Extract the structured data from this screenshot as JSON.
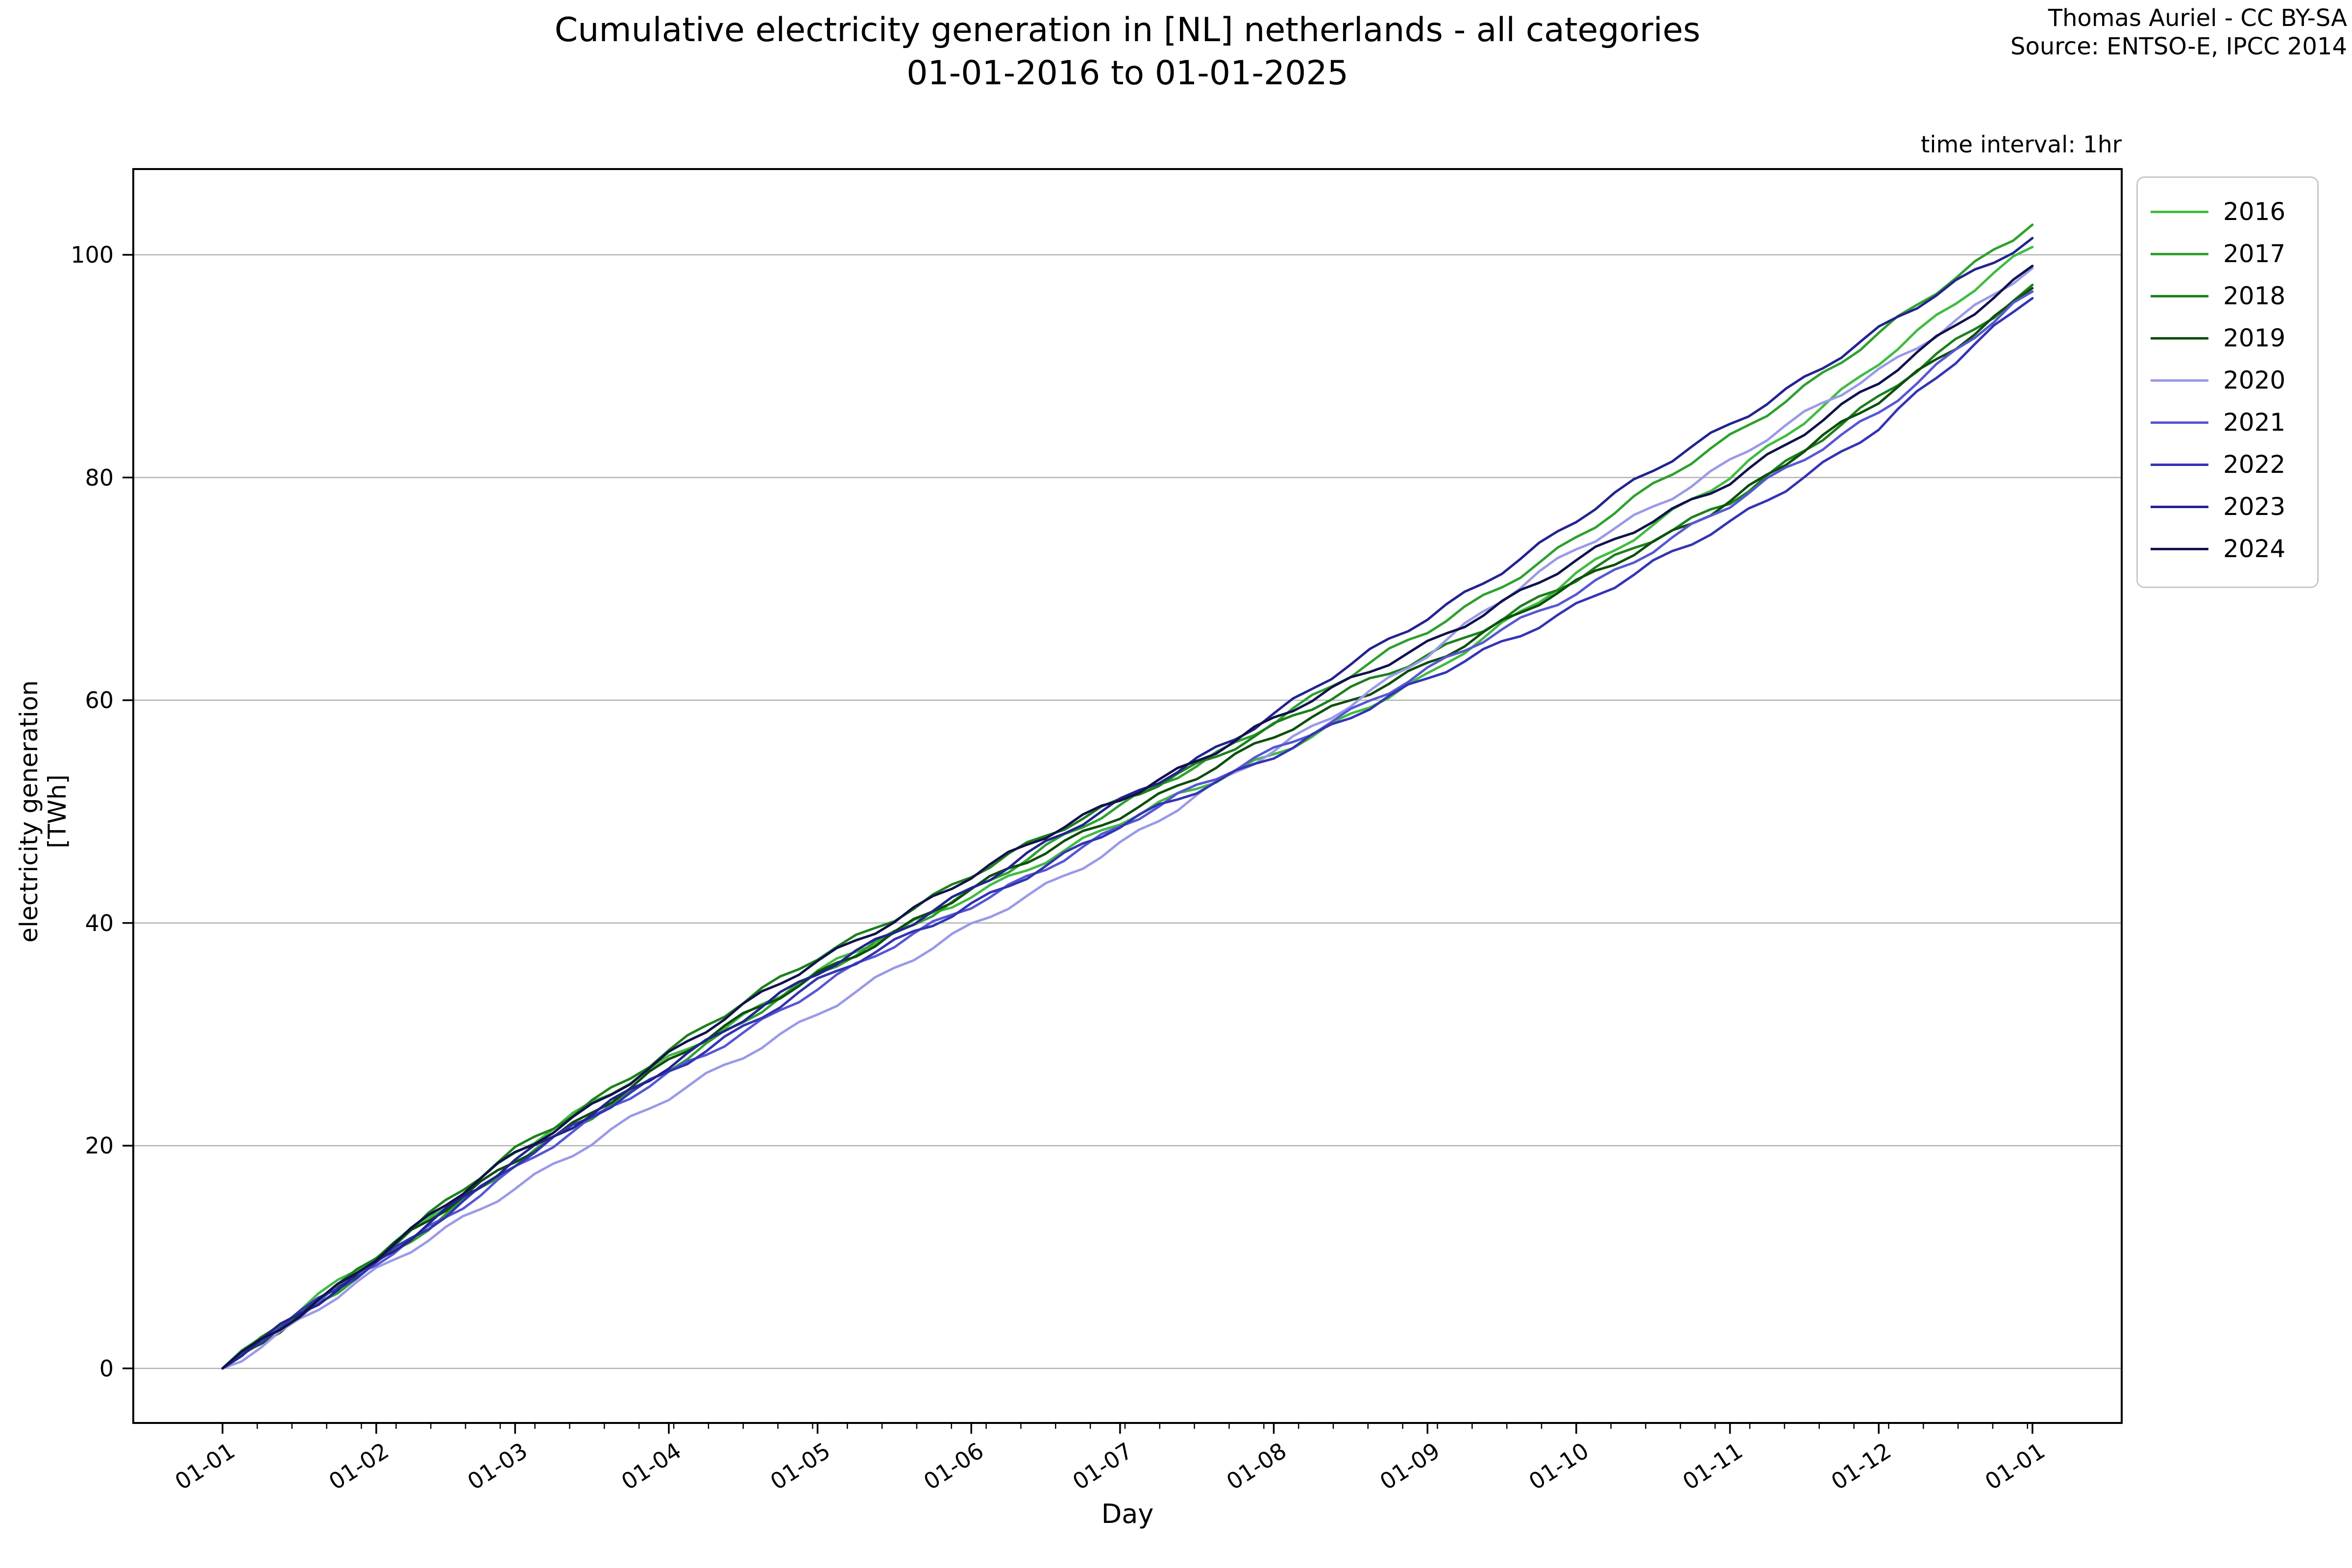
{
  "title": {
    "line1": "Cumulative electricity generation in [NL] netherlands - all categories",
    "line2": "01-01-2016 to 01-01-2025"
  },
  "attribution": {
    "line1": "Thomas Auriel - CC BY-SA",
    "line2": "Source: ENTSO-E, IPCC 2014"
  },
  "annotation": {
    "time_interval": "time interval: 1hr"
  },
  "axes": {
    "xlabel": "Day",
    "ylabel": "electricity generation [TWh]",
    "yticks": [
      0,
      20,
      40,
      60,
      80,
      100
    ],
    "xtick_labels": [
      "01-01",
      "01-02",
      "01-03",
      "01-04",
      "01-05",
      "01-06",
      "01-07",
      "01-08",
      "01-09",
      "01-10",
      "01-11",
      "01-12",
      "01-01"
    ],
    "grid_color": "#b2b2b2",
    "spine_color": "#000000"
  },
  "chart_data": {
    "type": "line",
    "title": "Cumulative electricity generation in [NL] netherlands - all categories 01-01-2016 to 01-01-2025",
    "xlabel": "Day",
    "ylabel": "electricity generation [TWh]",
    "x_days": [
      0,
      31,
      59,
      90,
      120,
      151,
      181,
      212,
      243,
      273,
      304,
      334,
      365
    ],
    "xlim_days": [
      -18,
      383
    ],
    "ylim": [
      -4.9,
      107.7
    ],
    "grid": "horizontal",
    "legend_position": "upper-right-outside",
    "series": [
      {
        "name": "2016",
        "color": "#41bb41",
        "values": [
          0,
          10.2,
          19.3,
          27.9,
          35.5,
          42.6,
          48.9,
          55.3,
          62.0,
          71.5,
          79.9,
          90.5,
          100.7
        ]
      },
      {
        "name": "2017",
        "color": "#2fa02f",
        "values": [
          0,
          9.5,
          18.2,
          27.1,
          35.2,
          43.0,
          50.4,
          58.2,
          66.2,
          74.6,
          83.6,
          92.9,
          102.7
        ]
      },
      {
        "name": "2018",
        "color": "#1d801d",
        "values": [
          0,
          10.1,
          19.5,
          28.6,
          36.9,
          44.3,
          51.0,
          57.6,
          64.1,
          70.8,
          78.0,
          87.0,
          97.3
        ]
      },
      {
        "name": "2019",
        "color": "#0d4f0d",
        "values": [
          0,
          9.8,
          18.7,
          27.5,
          35.5,
          42.9,
          49.8,
          56.6,
          63.4,
          70.4,
          78.0,
          86.8,
          97.0
        ]
      },
      {
        "name": "2020",
        "color": "#9a9ae8",
        "values": [
          0,
          8.6,
          16.4,
          24.2,
          32.0,
          39.6,
          47.2,
          55.4,
          64.2,
          73.6,
          81.4,
          89.6,
          98.8
        ]
      },
      {
        "name": "2021",
        "color": "#5757d4",
        "values": [
          0,
          9.4,
          18.0,
          26.4,
          34.2,
          41.6,
          48.6,
          55.6,
          62.6,
          69.8,
          77.4,
          86.0,
          96.7
        ]
      },
      {
        "name": "2022",
        "color": "#3434b4",
        "values": [
          0,
          9.6,
          18.3,
          26.8,
          34.6,
          41.8,
          48.6,
          55.2,
          61.8,
          68.6,
          75.8,
          84.6,
          96.1
        ]
      },
      {
        "name": "2023",
        "color": "#232390",
        "values": [
          0,
          9.7,
          18.5,
          27.3,
          35.4,
          43.2,
          50.8,
          58.8,
          67.4,
          76.2,
          84.8,
          93.2,
          101.5
        ]
      },
      {
        "name": "2024",
        "color": "#11114d",
        "values": [
          0,
          10.0,
          19.2,
          28.2,
          36.6,
          44.2,
          51.2,
          58.2,
          65.2,
          72.4,
          79.8,
          88.4,
          99.0
        ]
      }
    ]
  }
}
